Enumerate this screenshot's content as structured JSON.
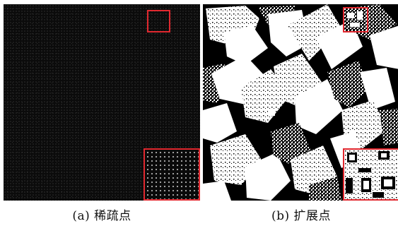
{
  "figure": {
    "panels": [
      {
        "id": "a",
        "caption": "(a) 稀疏点"
      },
      {
        "id": "b",
        "caption": "(b) 扩展点"
      }
    ],
    "colors": {
      "highlight_box": "#e1282f",
      "background": "#000000",
      "foreground": "#ffffff"
    }
  }
}
